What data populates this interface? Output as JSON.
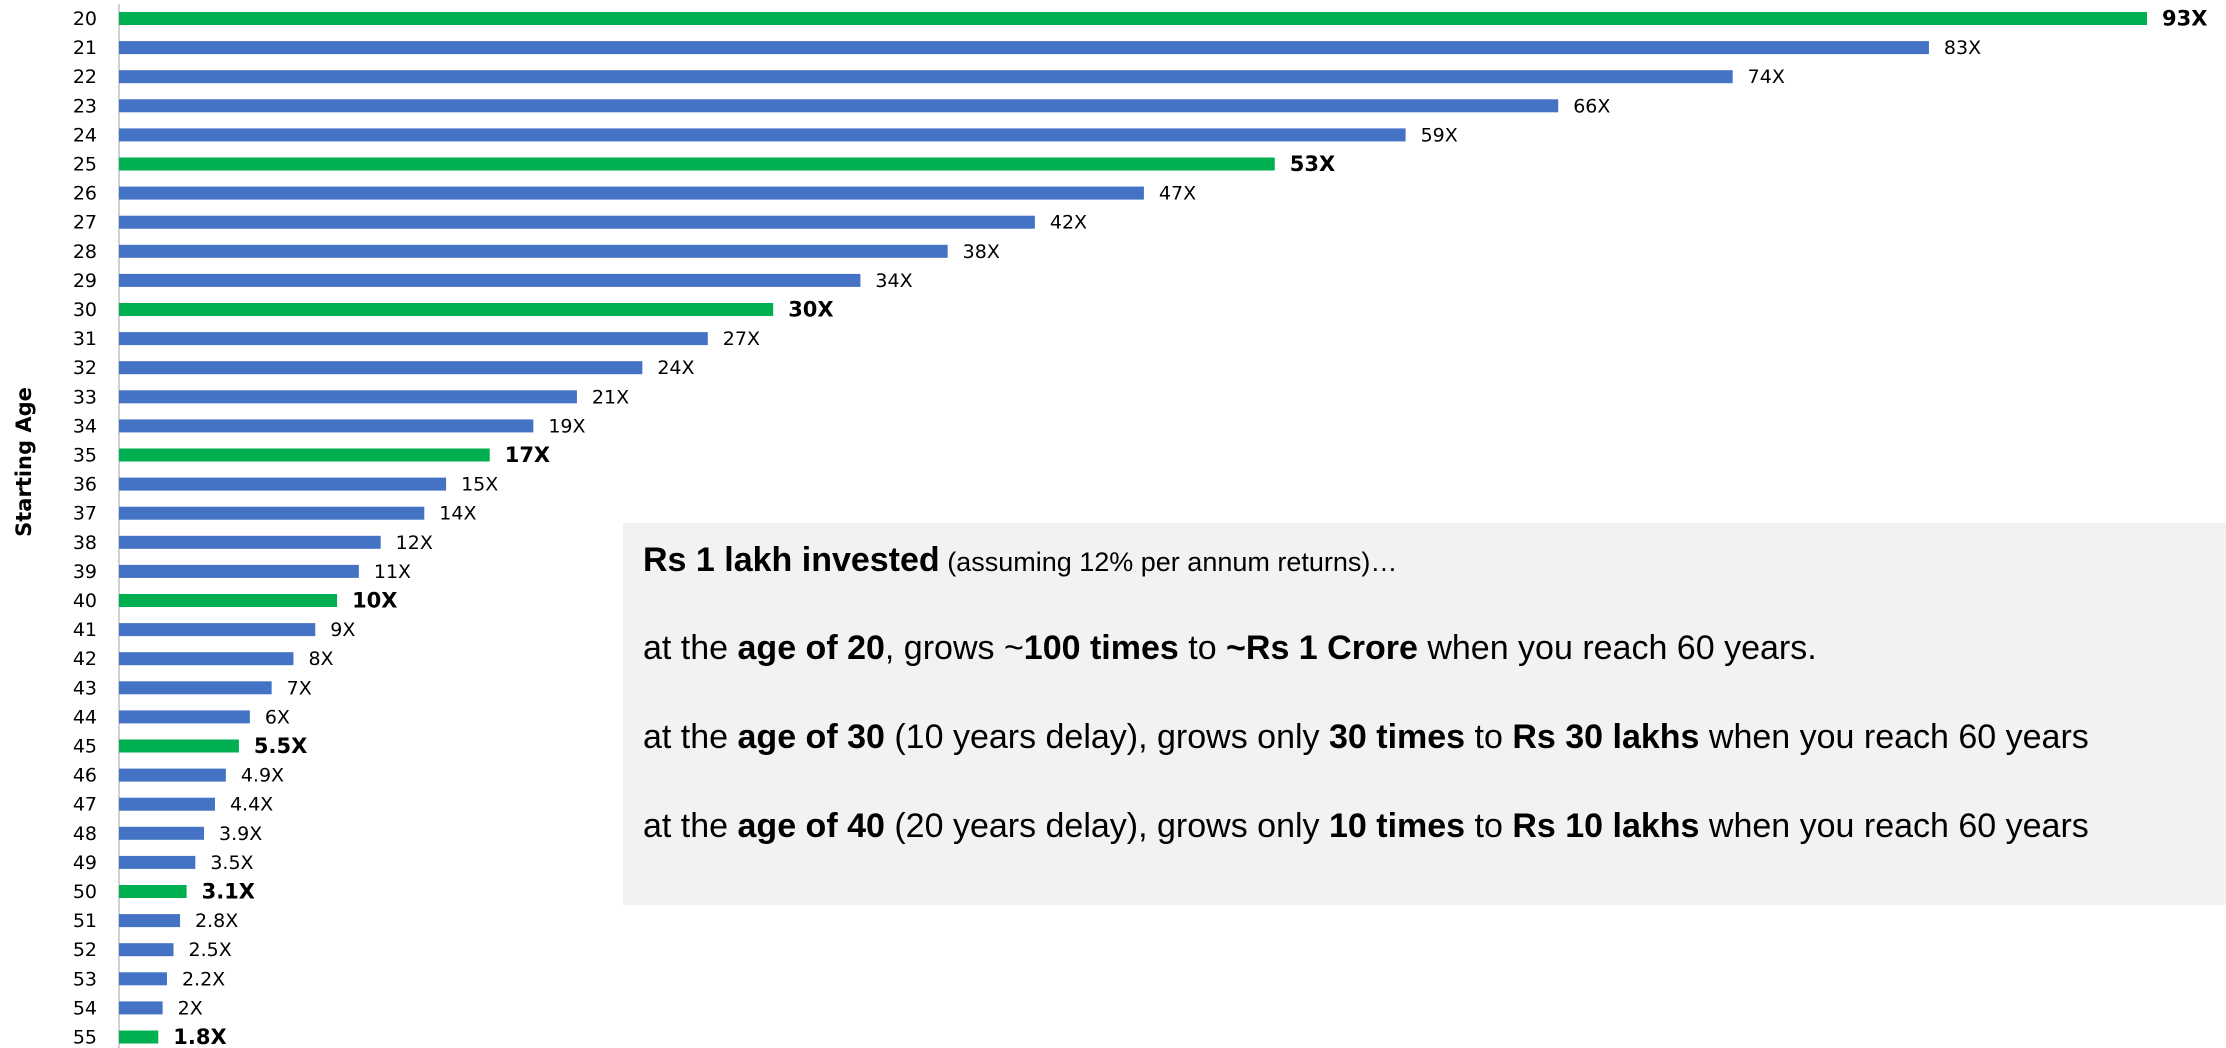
{
  "chart_data": {
    "type": "bar",
    "orientation": "horizontal",
    "y_label": "Starting Age",
    "categories": [
      "20",
      "21",
      "22",
      "23",
      "24",
      "25",
      "26",
      "27",
      "28",
      "29",
      "30",
      "31",
      "32",
      "33",
      "34",
      "35",
      "36",
      "37",
      "38",
      "39",
      "40",
      "41",
      "42",
      "43",
      "44",
      "45",
      "46",
      "47",
      "48",
      "49",
      "50",
      "51",
      "52",
      "53",
      "54",
      "55"
    ],
    "values": [
      93,
      83,
      74,
      66,
      59,
      53,
      47,
      42,
      38,
      34,
      30,
      27,
      24,
      21,
      19,
      17,
      15,
      14,
      12,
      11,
      10,
      9,
      8,
      7,
      6,
      5.5,
      4.9,
      4.4,
      3.9,
      3.5,
      3.1,
      2.8,
      2.5,
      2.2,
      2,
      1.8
    ],
    "value_labels": [
      "93X",
      "83X",
      "74X",
      "66X",
      "59X",
      "53X",
      "47X",
      "42X",
      "38X",
      "34X",
      "30X",
      "27X",
      "24X",
      "21X",
      "19X",
      "17X",
      "15X",
      "14X",
      "12X",
      "11X",
      "10X",
      "9X",
      "8X",
      "7X",
      "6X",
      "5.5X",
      "4.9X",
      "4.4X",
      "3.9X",
      "3.5X",
      "3.1X",
      "2.8X",
      "2.5X",
      "2.2X",
      "2X",
      "1.8X"
    ],
    "colors": [
      "#00b050",
      "#4472c4",
      "#4472c4",
      "#4472c4",
      "#4472c4",
      "#00b050",
      "#4472c4",
      "#4472c4",
      "#4472c4",
      "#4472c4",
      "#00b050",
      "#4472c4",
      "#4472c4",
      "#4472c4",
      "#4472c4",
      "#00b050",
      "#4472c4",
      "#4472c4",
      "#4472c4",
      "#4472c4",
      "#00b050",
      "#4472c4",
      "#4472c4",
      "#4472c4",
      "#4472c4",
      "#00b050",
      "#4472c4",
      "#4472c4",
      "#4472c4",
      "#4472c4",
      "#00b050",
      "#4472c4",
      "#4472c4",
      "#4472c4",
      "#4472c4",
      "#00b050"
    ]
  },
  "note": [
    [
      "Rs 1 lakh invested",
      " (assuming 12% per annum returns)…"
    ],
    [
      "at the ",
      "age of 20",
      ", grows ~",
      "100 times",
      " to ",
      "~Rs 1 Crore",
      " when you reach 60 years."
    ],
    [
      "at the ",
      "age of 30",
      " (10 years delay), grows only ",
      "30 times",
      " to ",
      "Rs 30 lakhs",
      " when you reach 60 years"
    ],
    [
      "at the ",
      "age of 40",
      " (20 years delay), grows only ",
      "10 times",
      " to ",
      "Rs 10 lakhs",
      " when you reach 60 years"
    ]
  ]
}
